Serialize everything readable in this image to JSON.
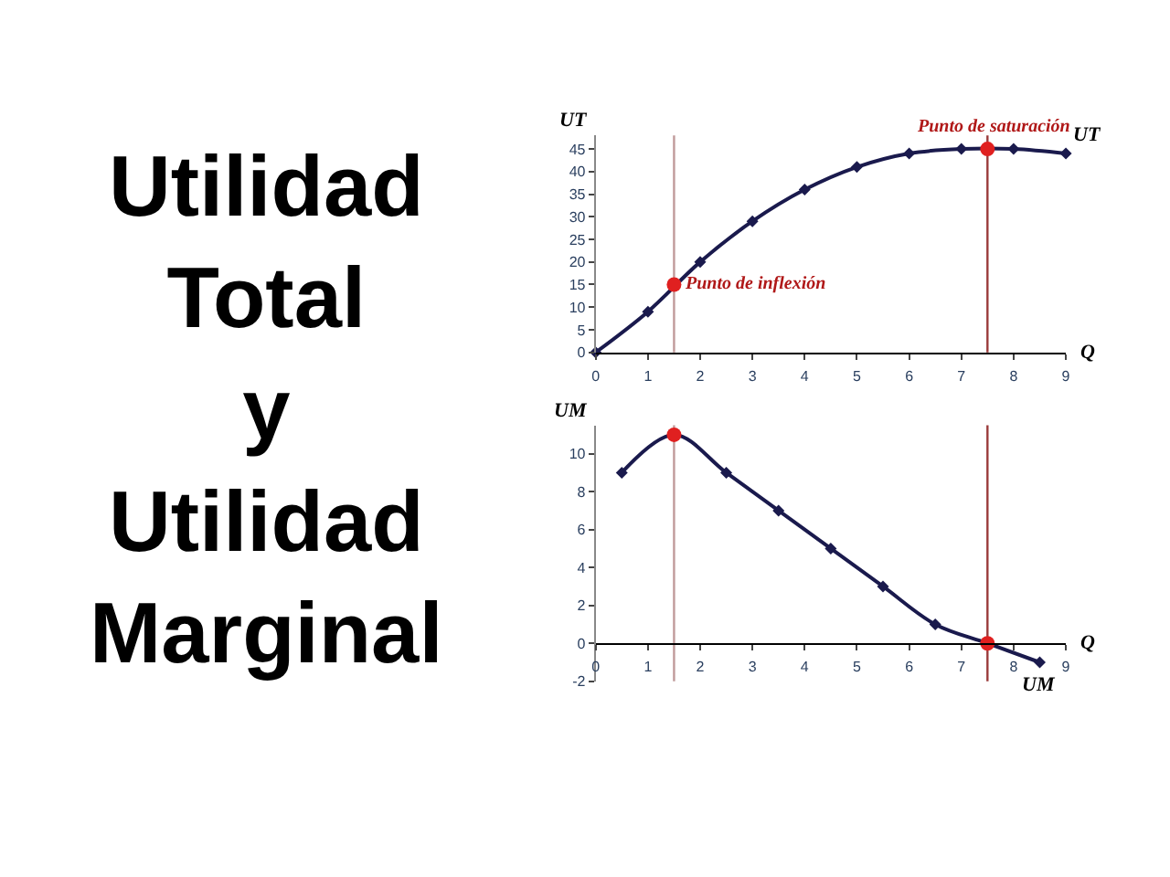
{
  "chart_data": [
    {
      "type": "line",
      "title": "Utilidad Total y Utilidad Marginal",
      "xlabel": "Q",
      "ylabel": "UT",
      "xlim": [
        0,
        9
      ],
      "xticks": [
        0,
        1,
        2,
        3,
        4,
        5,
        6,
        7,
        8,
        9
      ],
      "ylim": [
        0,
        48
      ],
      "yticks": [
        0,
        5,
        10,
        15,
        20,
        25,
        30,
        35,
        40,
        45
      ],
      "series": [
        {
          "name": "UT",
          "color": "#1a1a4d",
          "marker": "diamond",
          "x": [
            0,
            1,
            2,
            3,
            4,
            5,
            6,
            7,
            8,
            9
          ],
          "values": [
            0,
            9,
            20,
            29,
            36,
            41,
            44,
            45,
            45,
            44
          ]
        },
        {
          "type": "scatter",
          "color": "#e02020",
          "marker": "circle",
          "x": [
            1.5,
            7.5
          ],
          "values": [
            15,
            45
          ]
        }
      ],
      "ref_lines": [
        {
          "axis": "x",
          "value": 1.5,
          "color": "#c09a9a"
        },
        {
          "axis": "x",
          "value": 7.5,
          "color": "#9a3a3a"
        }
      ],
      "annotations": [
        {
          "text": "Punto de inflexión",
          "x": 1.5,
          "y": 15
        },
        {
          "text": "Punto de saturación",
          "x": 7.5,
          "y": 45
        }
      ]
    },
    {
      "type": "line",
      "xlabel": "Q",
      "ylabel": "UM",
      "xlim": [
        0,
        9
      ],
      "xticks": [
        0,
        1,
        2,
        3,
        4,
        5,
        6,
        7,
        8,
        9
      ],
      "ylim": [
        -2,
        11.5
      ],
      "yticks": [
        -2,
        0,
        2,
        4,
        6,
        8,
        10
      ],
      "series": [
        {
          "name": "UM",
          "color": "#1a1a4d",
          "marker": "diamond",
          "x": [
            0.5,
            1.5,
            2.5,
            3.5,
            4.5,
            5.5,
            6.5,
            7.5,
            8.5
          ],
          "values": [
            9,
            11,
            9,
            7,
            5,
            3,
            1,
            0,
            -1
          ]
        },
        {
          "type": "scatter",
          "color": "#e02020",
          "marker": "circle",
          "x": [
            1.5,
            7.5
          ],
          "values": [
            11,
            0
          ]
        }
      ],
      "ref_lines": [
        {
          "axis": "x",
          "value": 1.5,
          "color": "#c09a9a"
        },
        {
          "axis": "x",
          "value": 7.5,
          "color": "#9a3a3a"
        }
      ]
    }
  ]
}
